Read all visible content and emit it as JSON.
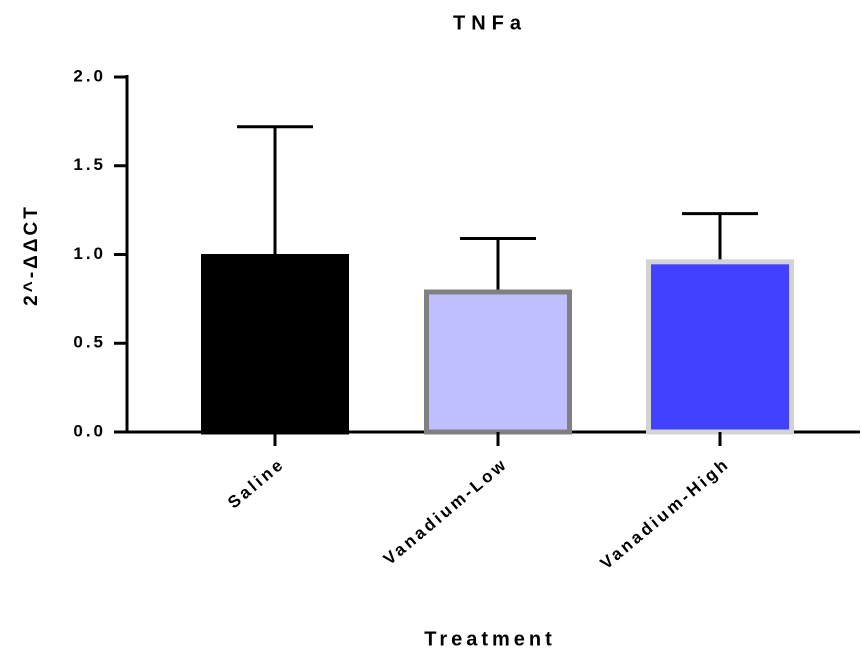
{
  "chart_data": {
    "type": "bar",
    "title": "TNFa",
    "x_label": "Treatment",
    "y_label": "2^-ΔΔCT",
    "categories": [
      "Saline",
      "Vanadium-Low",
      "Vanadium-High"
    ],
    "values": [
      1.0,
      0.8,
      0.97
    ],
    "errors": [
      0.72,
      0.29,
      0.26
    ],
    "colors": [
      "#000000",
      "#bfbfff",
      "#4141ff"
    ],
    "edge_colors": [
      "#000000",
      "#808080",
      "#d3d3d3"
    ],
    "ylim": [
      0,
      2.0
    ],
    "yticks": [
      {
        "value": 0,
        "label": "0.0"
      },
      {
        "value": 0.5,
        "label": "0.5"
      },
      {
        "value": 1.0,
        "label": "1.0"
      },
      {
        "value": 1.5,
        "label": "1.5"
      },
      {
        "value": 2.0,
        "label": "2.0"
      }
    ],
    "grid": false
  }
}
